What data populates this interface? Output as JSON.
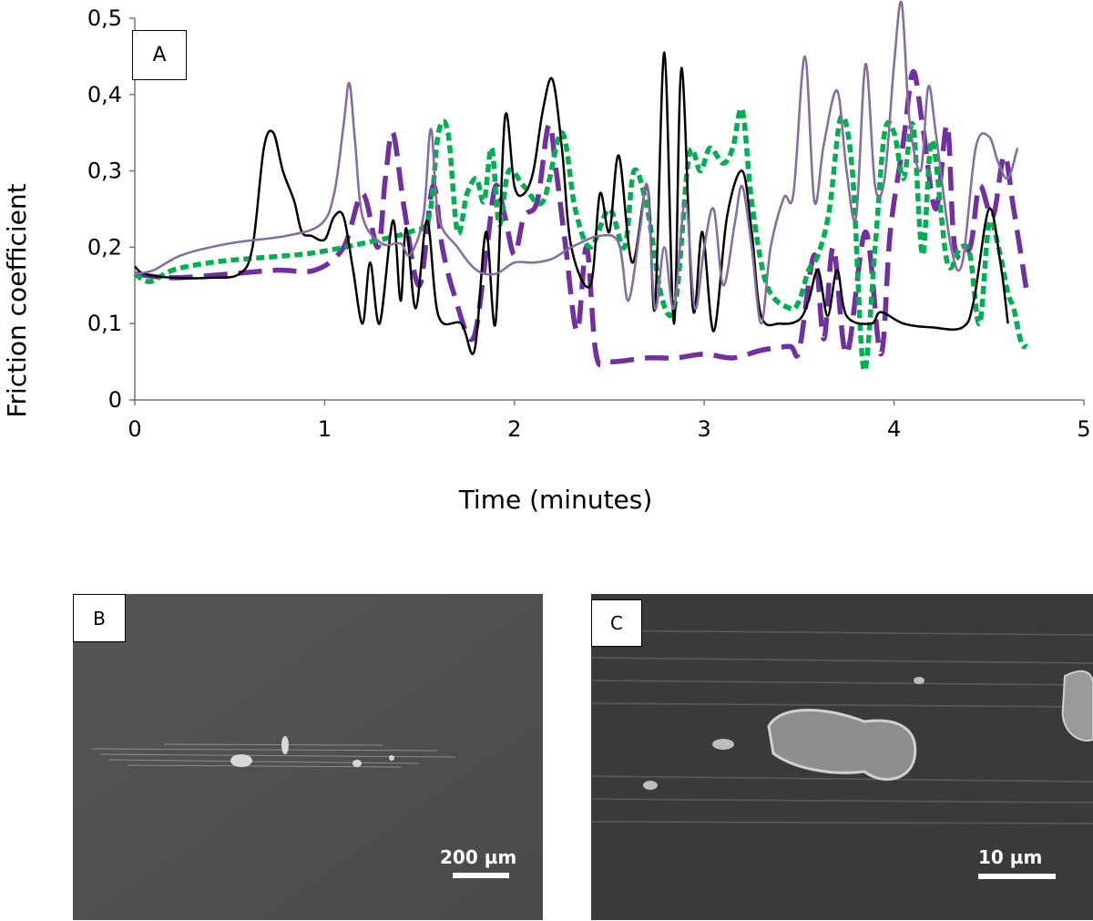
{
  "panels": {
    "a": "A",
    "b": "B",
    "c": "C"
  },
  "micrographs": {
    "b_scale": "200 µm",
    "c_scale": "10 µm"
  },
  "chart_data": {
    "type": "line",
    "title": "",
    "xlabel": "Time (minutes)",
    "ylabel": "Friction coefficient",
    "xlim": [
      0,
      5
    ],
    "ylim": [
      0,
      0.5
    ],
    "x_ticks": [
      0,
      1,
      2,
      3,
      4,
      5
    ],
    "x_tick_labels": [
      "0",
      "1",
      "2",
      "3",
      "4",
      "5"
    ],
    "y_ticks": [
      0,
      0.1,
      0.2,
      0.3,
      0.4,
      0.5
    ],
    "y_tick_labels": [
      "0",
      "0,1",
      "0,2",
      "0,3",
      "0,4",
      "0,5"
    ],
    "grid": false,
    "legend": "none",
    "series": [
      {
        "color": "#000000",
        "style": "solid",
        "points": [
          [
            0,
            0.175
          ],
          [
            0.05,
            0.165
          ],
          [
            0.2,
            0.16
          ],
          [
            0.4,
            0.16
          ],
          [
            0.55,
            0.165
          ],
          [
            0.62,
            0.2
          ],
          [
            0.68,
            0.33
          ],
          [
            0.73,
            0.35
          ],
          [
            0.78,
            0.3
          ],
          [
            0.84,
            0.26
          ],
          [
            0.88,
            0.22
          ],
          [
            0.93,
            0.215
          ],
          [
            1.0,
            0.21
          ],
          [
            1.05,
            0.24
          ],
          [
            1.1,
            0.24
          ],
          [
            1.15,
            0.17
          ],
          [
            1.2,
            0.1
          ],
          [
            1.24,
            0.18
          ],
          [
            1.29,
            0.1
          ],
          [
            1.36,
            0.235
          ],
          [
            1.4,
            0.13
          ],
          [
            1.43,
            0.225
          ],
          [
            1.48,
            0.12
          ],
          [
            1.54,
            0.235
          ],
          [
            1.6,
            0.11
          ],
          [
            1.72,
            0.1
          ],
          [
            1.79,
            0.065
          ],
          [
            1.85,
            0.22
          ],
          [
            1.9,
            0.1
          ],
          [
            1.95,
            0.37
          ],
          [
            2.0,
            0.28
          ],
          [
            2.05,
            0.27
          ],
          [
            2.1,
            0.3
          ],
          [
            2.15,
            0.38
          ],
          [
            2.2,
            0.42
          ],
          [
            2.25,
            0.33
          ],
          [
            2.3,
            0.2
          ],
          [
            2.4,
            0.15
          ],
          [
            2.45,
            0.27
          ],
          [
            2.5,
            0.22
          ],
          [
            2.55,
            0.32
          ],
          [
            2.62,
            0.18
          ],
          [
            2.7,
            0.28
          ],
          [
            2.74,
            0.12
          ],
          [
            2.79,
            0.455
          ],
          [
            2.84,
            0.1
          ],
          [
            2.88,
            0.435
          ],
          [
            2.94,
            0.12
          ],
          [
            2.99,
            0.22
          ],
          [
            3.05,
            0.09
          ],
          [
            3.12,
            0.24
          ],
          [
            3.2,
            0.3
          ],
          [
            3.25,
            0.22
          ],
          [
            3.3,
            0.11
          ],
          [
            3.4,
            0.1
          ],
          [
            3.5,
            0.105
          ],
          [
            3.55,
            0.13
          ],
          [
            3.6,
            0.17
          ],
          [
            3.65,
            0.11
          ],
          [
            3.7,
            0.17
          ],
          [
            3.75,
            0.11
          ],
          [
            3.88,
            0.1
          ],
          [
            3.93,
            0.115
          ],
          [
            4.05,
            0.1
          ],
          [
            4.2,
            0.095
          ],
          [
            4.36,
            0.095
          ],
          [
            4.42,
            0.13
          ],
          [
            4.5,
            0.25
          ],
          [
            4.56,
            0.18
          ],
          [
            4.6,
            0.1
          ]
        ]
      },
      {
        "color": "#6e6aa8",
        "style": "solid",
        "points": [
          [
            0,
            0.165
          ],
          [
            0.1,
            0.17
          ],
          [
            0.25,
            0.19
          ],
          [
            0.5,
            0.205
          ],
          [
            0.8,
            0.215
          ],
          [
            0.98,
            0.23
          ],
          [
            1.05,
            0.27
          ],
          [
            1.1,
            0.36
          ],
          [
            1.13,
            0.415
          ],
          [
            1.16,
            0.34
          ],
          [
            1.2,
            0.24
          ],
          [
            1.3,
            0.205
          ],
          [
            1.4,
            0.205
          ],
          [
            1.45,
            0.19
          ],
          [
            1.52,
            0.24
          ],
          [
            1.56,
            0.355
          ],
          [
            1.6,
            0.24
          ],
          [
            1.7,
            0.2
          ],
          [
            1.8,
            0.17
          ],
          [
            1.9,
            0.165
          ],
          [
            2.0,
            0.18
          ],
          [
            2.1,
            0.18
          ],
          [
            2.2,
            0.185
          ],
          [
            2.3,
            0.2
          ],
          [
            2.45,
            0.215
          ],
          [
            2.55,
            0.205
          ],
          [
            2.6,
            0.13
          ],
          [
            2.66,
            0.22
          ],
          [
            2.7,
            0.28
          ],
          [
            2.74,
            0.12
          ],
          [
            2.79,
            0.2
          ],
          [
            2.84,
            0.12
          ],
          [
            2.9,
            0.26
          ],
          [
            2.95,
            0.12
          ],
          [
            3.0,
            0.2
          ],
          [
            3.05,
            0.25
          ],
          [
            3.1,
            0.15
          ],
          [
            3.16,
            0.23
          ],
          [
            3.2,
            0.28
          ],
          [
            3.25,
            0.2
          ],
          [
            3.3,
            0.1
          ],
          [
            3.35,
            0.2
          ],
          [
            3.42,
            0.265
          ],
          [
            3.47,
            0.27
          ],
          [
            3.53,
            0.45
          ],
          [
            3.58,
            0.26
          ],
          [
            3.63,
            0.335
          ],
          [
            3.7,
            0.405
          ],
          [
            3.75,
            0.3
          ],
          [
            3.8,
            0.24
          ],
          [
            3.85,
            0.44
          ],
          [
            3.9,
            0.28
          ],
          [
            3.95,
            0.29
          ],
          [
            4.0,
            0.44
          ],
          [
            4.04,
            0.52
          ],
          [
            4.08,
            0.37
          ],
          [
            4.14,
            0.3
          ],
          [
            4.18,
            0.41
          ],
          [
            4.22,
            0.35
          ],
          [
            4.3,
            0.2
          ],
          [
            4.36,
            0.18
          ],
          [
            4.43,
            0.33
          ],
          [
            4.5,
            0.345
          ],
          [
            4.55,
            0.31
          ],
          [
            4.6,
            0.29
          ],
          [
            4.65,
            0.33
          ]
        ]
      },
      {
        "color": "#7030a0",
        "style": "long-dash",
        "points": [
          [
            0,
            0.165
          ],
          [
            0.2,
            0.16
          ],
          [
            0.5,
            0.165
          ],
          [
            0.75,
            0.17
          ],
          [
            0.95,
            0.17
          ],
          [
            1.1,
            0.2
          ],
          [
            1.2,
            0.27
          ],
          [
            1.28,
            0.2
          ],
          [
            1.32,
            0.29
          ],
          [
            1.36,
            0.35
          ],
          [
            1.42,
            0.25
          ],
          [
            1.5,
            0.15
          ],
          [
            1.57,
            0.28
          ],
          [
            1.62,
            0.2
          ],
          [
            1.68,
            0.14
          ],
          [
            1.78,
            0.08
          ],
          [
            1.85,
            0.19
          ],
          [
            1.9,
            0.28
          ],
          [
            1.95,
            0.24
          ],
          [
            2.0,
            0.19
          ],
          [
            2.05,
            0.24
          ],
          [
            2.12,
            0.26
          ],
          [
            2.18,
            0.36
          ],
          [
            2.22,
            0.3
          ],
          [
            2.27,
            0.2
          ],
          [
            2.33,
            0.09
          ],
          [
            2.38,
            0.2
          ],
          [
            2.43,
            0.06
          ],
          [
            2.5,
            0.05
          ],
          [
            2.7,
            0.055
          ],
          [
            2.85,
            0.055
          ],
          [
            3.0,
            0.06
          ],
          [
            3.15,
            0.055
          ],
          [
            3.3,
            0.065
          ],
          [
            3.45,
            0.07
          ],
          [
            3.5,
            0.065
          ],
          [
            3.58,
            0.19
          ],
          [
            3.63,
            0.08
          ],
          [
            3.68,
            0.2
          ],
          [
            3.75,
            0.06
          ],
          [
            3.85,
            0.22
          ],
          [
            3.93,
            0.06
          ],
          [
            3.98,
            0.22
          ],
          [
            4.05,
            0.34
          ],
          [
            4.1,
            0.43
          ],
          [
            4.15,
            0.36
          ],
          [
            4.22,
            0.25
          ],
          [
            4.28,
            0.36
          ],
          [
            4.32,
            0.2
          ],
          [
            4.4,
            0.2
          ],
          [
            4.45,
            0.28
          ],
          [
            4.52,
            0.24
          ],
          [
            4.58,
            0.32
          ],
          [
            4.63,
            0.25
          ],
          [
            4.7,
            0.14
          ]
        ]
      },
      {
        "color": "#00b050",
        "style": "short-dash",
        "points": [
          [
            0,
            0.165
          ],
          [
            0.08,
            0.155
          ],
          [
            0.2,
            0.17
          ],
          [
            0.4,
            0.18
          ],
          [
            0.6,
            0.185
          ],
          [
            0.85,
            0.19
          ],
          [
            1.0,
            0.195
          ],
          [
            1.2,
            0.205
          ],
          [
            1.45,
            0.22
          ],
          [
            1.55,
            0.24
          ],
          [
            1.6,
            0.35
          ],
          [
            1.65,
            0.35
          ],
          [
            1.7,
            0.22
          ],
          [
            1.75,
            0.27
          ],
          [
            1.8,
            0.29
          ],
          [
            1.84,
            0.26
          ],
          [
            1.88,
            0.33
          ],
          [
            1.92,
            0.23
          ],
          [
            1.97,
            0.3
          ],
          [
            2.05,
            0.28
          ],
          [
            2.15,
            0.26
          ],
          [
            2.25,
            0.35
          ],
          [
            2.32,
            0.25
          ],
          [
            2.4,
            0.2
          ],
          [
            2.5,
            0.25
          ],
          [
            2.58,
            0.2
          ],
          [
            2.63,
            0.3
          ],
          [
            2.7,
            0.25
          ],
          [
            2.78,
            0.13
          ],
          [
            2.85,
            0.13
          ],
          [
            2.92,
            0.32
          ],
          [
            2.98,
            0.3
          ],
          [
            3.03,
            0.33
          ],
          [
            3.1,
            0.31
          ],
          [
            3.15,
            0.33
          ],
          [
            3.2,
            0.38
          ],
          [
            3.25,
            0.26
          ],
          [
            3.33,
            0.15
          ],
          [
            3.45,
            0.12
          ],
          [
            3.5,
            0.13
          ],
          [
            3.55,
            0.17
          ],
          [
            3.6,
            0.19
          ],
          [
            3.66,
            0.25
          ],
          [
            3.72,
            0.37
          ],
          [
            3.78,
            0.3
          ],
          [
            3.84,
            0.04
          ],
          [
            3.9,
            0.2
          ],
          [
            3.95,
            0.35
          ],
          [
            4.0,
            0.35
          ],
          [
            4.05,
            0.29
          ],
          [
            4.1,
            0.36
          ],
          [
            4.15,
            0.19
          ],
          [
            4.2,
            0.34
          ],
          [
            4.28,
            0.18
          ],
          [
            4.35,
            0.2
          ],
          [
            4.4,
            0.19
          ],
          [
            4.45,
            0.1
          ],
          [
            4.5,
            0.23
          ],
          [
            4.55,
            0.2
          ],
          [
            4.6,
            0.14
          ],
          [
            4.63,
            0.12
          ],
          [
            4.67,
            0.075
          ],
          [
            4.7,
            0.07
          ]
        ]
      }
    ]
  }
}
